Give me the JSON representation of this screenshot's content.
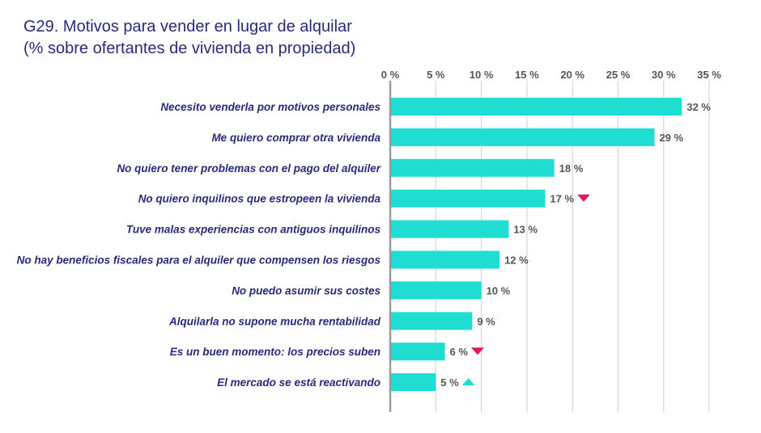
{
  "chart_data": {
    "type": "bar",
    "orientation": "horizontal",
    "title": "G29. Motivos para vender en lugar de alquilar",
    "subtitle": "(% sobre ofertantes de vivienda en propiedad)",
    "xlim": [
      0,
      35
    ],
    "ticks": [
      "0 %",
      "5 %",
      "10 %",
      "15 %",
      "20 %",
      "25 %",
      "30 %",
      "35 %"
    ],
    "grid": true,
    "categories": [
      "Necesito venderla por motivos personales",
      "Me quiero comprar otra vivienda",
      "No quiero tener problemas con el pago del alquiler",
      "No quiero inquilinos que estropeen la vivienda",
      "Tuve malas experiencias con antiguos inquilinos",
      "No hay beneficios fiscales para el alquiler que compensen los riesgos",
      "No puedo asumir sus costes",
      "Alquilarla no supone mucha rentabilidad",
      "Es un buen momento: los precios suben",
      "El mercado se está reactivando"
    ],
    "values": [
      32,
      29,
      18,
      17,
      13,
      12,
      10,
      9,
      6,
      5
    ],
    "labels": [
      "32 %",
      "29 %",
      "18 %",
      "17 %",
      "13 %",
      "12 %",
      "10 %",
      "9 %",
      "6 %",
      "5 %"
    ],
    "trend": [
      "",
      "",
      "",
      "down",
      "",
      "",
      "",
      "",
      "down",
      "up"
    ],
    "colors": {
      "bar": "#1fddd0",
      "down": "#e0195a",
      "up": "#1fddd0",
      "text": "#2a2a7c",
      "value": "#555555",
      "grid": "#d9d9d9",
      "axis": "#999999"
    }
  }
}
